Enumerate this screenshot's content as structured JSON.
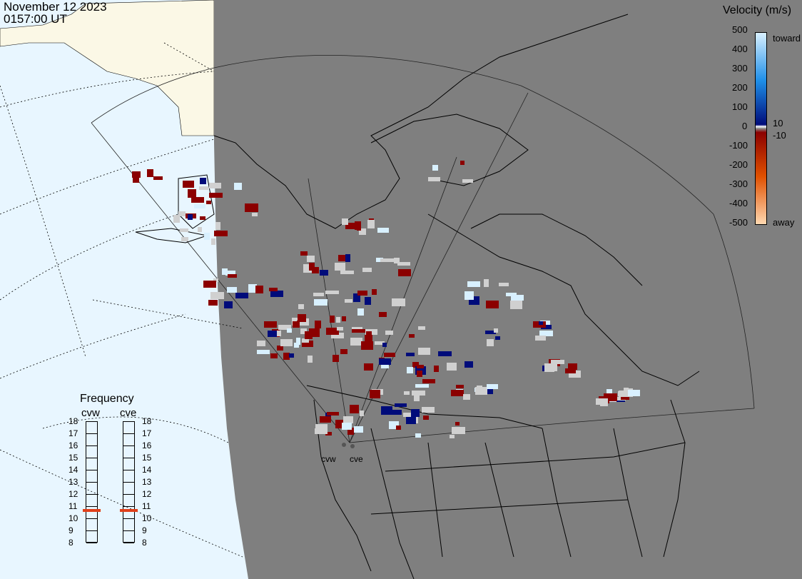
{
  "timestamp": {
    "date": "November 12 2023",
    "time": "0157:00 UT"
  },
  "velocity_legend": {
    "title": "Velocity (m/s)",
    "ticks": [
      "500",
      "400",
      "300",
      "200",
      "100",
      "0",
      "-100",
      "-200",
      "-300",
      "-400",
      "-500"
    ],
    "label_toward": "toward",
    "label_away": "away",
    "label_pos_small": "10",
    "label_neg_small": "-10",
    "colors": {
      "toward_max": "#d8f0ff",
      "toward_mid": "#1e8fe8",
      "toward_low": "#000c7a",
      "away_low": "#8b0000",
      "away_mid": "#e05000",
      "away_max": "#ffd8b0",
      "ground_scatter": "#d0d0d0"
    }
  },
  "frequency_panel": {
    "title": "Frequency",
    "radars": [
      {
        "name": "cvw",
        "frequency_mhz": 11
      },
      {
        "name": "cve",
        "frequency_mhz": 11
      }
    ],
    "scale": [
      "18",
      "17",
      "16",
      "15",
      "14",
      "13",
      "12",
      "11",
      "10",
      "9",
      "8"
    ],
    "marker_color": "#e0401a"
  },
  "radar_sites": [
    {
      "name": "cvw"
    },
    {
      "name": "cve"
    }
  ],
  "map_colors": {
    "ocean": "#e8f6ff",
    "land_day": "#fbf8e6",
    "night": "#7f7f7f",
    "coastline": "#000000"
  }
}
